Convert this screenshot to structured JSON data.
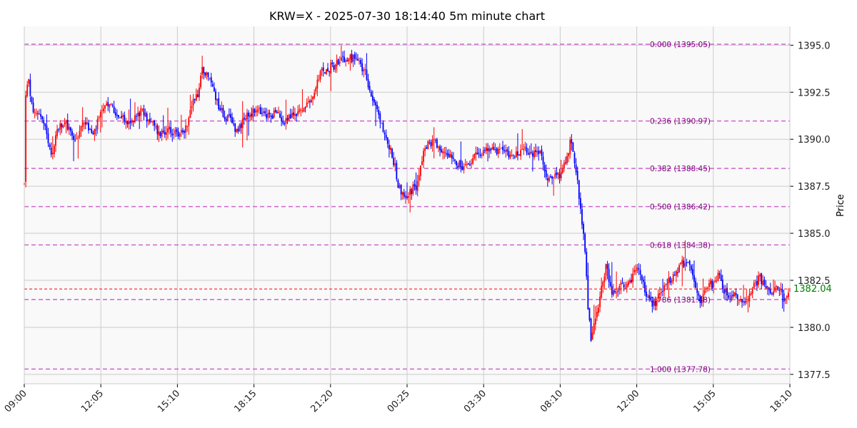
{
  "chart_data": {
    "type": "candlestick",
    "title": "KRW=X - 2025-07-30 18:14:40 5m minute chart",
    "xlabel": "",
    "ylabel": "Price",
    "ylim": [
      1377.0,
      1396.0
    ],
    "grid": true,
    "x_ticks": [
      "09:00",
      "12:05",
      "15:10",
      "18:15",
      "21:20",
      "00:25",
      "03:30",
      "08:10",
      "12:00",
      "15:05",
      "18:10"
    ],
    "y_ticks": [
      "1377.5",
      "1380.0",
      "1382.5",
      "1385.0",
      "1387.5",
      "1390.0",
      "1392.5",
      "1395.0"
    ],
    "y_tick_values": [
      1377.5,
      1380.0,
      1382.5,
      1385.0,
      1387.5,
      1390.0,
      1392.5,
      1395.0
    ],
    "candle_colors": {
      "up": "#ff0000",
      "down": "#0000ff"
    },
    "fib_color": "#cc66cc",
    "fib_label_color": "#800080",
    "fib_levels": [
      {
        "label": "0.000 (1395.05)",
        "value": 1395.05
      },
      {
        "label": "0.236 (1390.97)",
        "value": 1390.97
      },
      {
        "label": "0.382 (1388.45)",
        "value": 1388.45
      },
      {
        "label": "0.500 (1386.42)",
        "value": 1386.42
      },
      {
        "label": "0.618 (1384.38)",
        "value": 1384.38
      },
      {
        "label": "0.786 (1381.48)",
        "value": 1381.48
      },
      {
        "label": "1.000 (1377.78)",
        "value": 1377.78
      }
    ],
    "last_price": {
      "label": "1382.04",
      "value": 1382.04,
      "line_color": "#ff0000",
      "label_color": "#008000"
    },
    "series_path": [
      [
        0,
        1387.6
      ],
      [
        1,
        1392.5
      ],
      [
        3,
        1393.0
      ],
      [
        6,
        1391.2
      ],
      [
        10,
        1391.5
      ],
      [
        14,
        1390.5
      ],
      [
        18,
        1389.0
      ],
      [
        22,
        1390.5
      ],
      [
        28,
        1390.8
      ],
      [
        34,
        1389.9
      ],
      [
        40,
        1391.0
      ],
      [
        46,
        1390.2
      ],
      [
        52,
        1391.5
      ],
      [
        58,
        1391.8
      ],
      [
        64,
        1391.2
      ],
      [
        70,
        1390.8
      ],
      [
        78,
        1391.5
      ],
      [
        84,
        1391.0
      ],
      [
        90,
        1390.3
      ],
      [
        96,
        1390.5
      ],
      [
        102,
        1390.2
      ],
      [
        108,
        1390.6
      ],
      [
        112,
        1391.8
      ],
      [
        116,
        1392.4
      ],
      [
        119,
        1393.8
      ],
      [
        122,
        1393.5
      ],
      [
        126,
        1392.8
      ],
      [
        130,
        1391.8
      ],
      [
        134,
        1391.2
      ],
      [
        138,
        1391.0
      ],
      [
        142,
        1390.5
      ],
      [
        146,
        1390.9
      ],
      [
        150,
        1391.3
      ],
      [
        156,
        1391.5
      ],
      [
        162,
        1391.2
      ],
      [
        168,
        1391.4
      ],
      [
        174,
        1391.0
      ],
      [
        180,
        1391.3
      ],
      [
        186,
        1391.6
      ],
      [
        190,
        1391.8
      ],
      [
        194,
        1392.4
      ],
      [
        198,
        1393.5
      ],
      [
        202,
        1393.7
      ],
      [
        208,
        1394.0
      ],
      [
        214,
        1394.2
      ],
      [
        220,
        1394.3
      ],
      [
        224,
        1394.0
      ],
      [
        228,
        1393.6
      ],
      [
        232,
        1392.4
      ],
      [
        236,
        1391.5
      ],
      [
        240,
        1390.5
      ],
      [
        244,
        1389.6
      ],
      [
        248,
        1388.5
      ],
      [
        250,
        1387.6
      ],
      [
        254,
        1386.9
      ],
      [
        258,
        1387.2
      ],
      [
        262,
        1387.5
      ],
      [
        266,
        1389.0
      ],
      [
        270,
        1389.8
      ],
      [
        274,
        1389.9
      ],
      [
        278,
        1389.2
      ],
      [
        282,
        1389.3
      ],
      [
        286,
        1389.2
      ],
      [
        290,
        1388.7
      ],
      [
        294,
        1388.4
      ],
      [
        298,
        1388.6
      ],
      [
        300,
        1389.0
      ],
      [
        306,
        1389.4
      ],
      [
        312,
        1389.5
      ],
      [
        318,
        1389.4
      ],
      [
        324,
        1389.3
      ],
      [
        330,
        1389.2
      ],
      [
        336,
        1389.4
      ],
      [
        342,
        1389.3
      ],
      [
        346,
        1389.1
      ],
      [
        349,
        1388.2
      ],
      [
        352,
        1387.8
      ],
      [
        356,
        1388.0
      ],
      [
        360,
        1388.2
      ],
      [
        363,
        1389.2
      ],
      [
        365,
        1389.8
      ],
      [
        367,
        1389.5
      ],
      [
        369,
        1388.2
      ],
      [
        371,
        1387.0
      ],
      [
        373,
        1385.5
      ],
      [
        375,
        1384.0
      ],
      [
        377,
        1381.0
      ],
      [
        379,
        1379.5
      ],
      [
        381,
        1380.3
      ],
      [
        383,
        1381.0
      ],
      [
        385,
        1381.5
      ],
      [
        387,
        1382.5
      ],
      [
        389,
        1383.3
      ],
      [
        391,
        1382.6
      ],
      [
        393,
        1381.8
      ],
      [
        396,
        1381.6
      ],
      [
        399,
        1382.2
      ],
      [
        402,
        1381.9
      ],
      [
        406,
        1382.6
      ],
      [
        410,
        1383.2
      ],
      [
        413,
        1382.6
      ],
      [
        416,
        1381.6
      ],
      [
        420,
        1381.1
      ],
      [
        424,
        1381.6
      ],
      [
        428,
        1382.2
      ],
      [
        432,
        1382.6
      ],
      [
        436,
        1382.8
      ],
      [
        440,
        1383.4
      ],
      [
        444,
        1383.5
      ],
      [
        448,
        1382.2
      ],
      [
        452,
        1381.3
      ],
      [
        456,
        1382.1
      ],
      [
        460,
        1382.3
      ],
      [
        464,
        1382.9
      ],
      [
        468,
        1382.0
      ],
      [
        472,
        1381.5
      ],
      [
        476,
        1381.8
      ],
      [
        480,
        1381.2
      ],
      [
        484,
        1381.4
      ],
      [
        488,
        1382.3
      ],
      [
        492,
        1382.6
      ],
      [
        496,
        1382.2
      ],
      [
        500,
        1381.9
      ],
      [
        504,
        1382.2
      ],
      [
        508,
        1381.6
      ],
      [
        512,
        1382.04
      ]
    ]
  }
}
